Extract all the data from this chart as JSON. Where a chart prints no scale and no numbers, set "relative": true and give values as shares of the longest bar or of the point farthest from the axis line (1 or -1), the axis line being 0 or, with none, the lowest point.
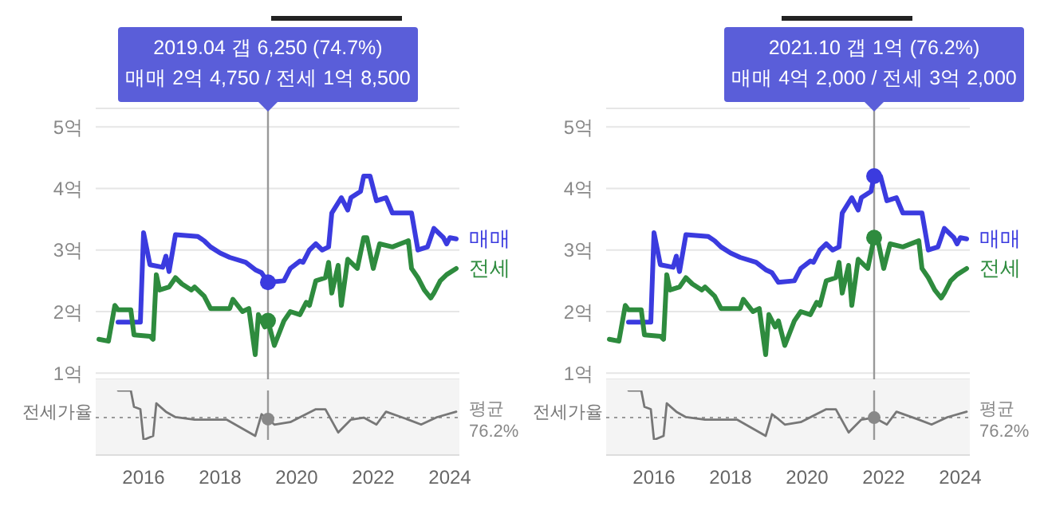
{
  "chart_data": [
    {
      "type": "line",
      "xlim": [
        "2014-10",
        "2024-04"
      ],
      "xticks": [
        "2016",
        "2018",
        "2020",
        "2022",
        "2024"
      ],
      "ylim": [
        0.9,
        5.3
      ],
      "yticks": [
        {
          "value": 1,
          "label": "1억"
        },
        {
          "value": 2,
          "label": "2억"
        },
        {
          "value": 3,
          "label": "3억"
        },
        {
          "value": 4,
          "label": "4억"
        },
        {
          "value": 5,
          "label": "5억"
        }
      ],
      "tick_labels": "y",
      "grid": "y",
      "legend": false,
      "series": [
        {
          "name": "매매",
          "color": "#3b3bdf",
          "x": [
            "2015-05",
            "2015-12",
            "2016-01",
            "2016-03",
            "2016-07",
            "2016-08",
            "2016-09",
            "2016-11",
            "2017-06",
            "2017-08",
            "2017-10",
            "2018-01",
            "2018-04",
            "2018-09",
            "2018-12",
            "2019-02",
            "2019-04",
            "2019-09",
            "2019-11",
            "2020-02",
            "2020-03",
            "2020-05",
            "2020-07",
            "2020-09",
            "2020-11",
            "2020-12",
            "2021-03",
            "2021-05",
            "2021-06",
            "2021-09",
            "2021-10",
            "2021-12",
            "2022-02",
            "2022-05",
            "2022-07",
            "2023-01",
            "2023-03",
            "2023-06",
            "2023-08",
            "2023-11",
            "2023-12",
            "2024-01",
            "2024-03"
          ],
          "values": [
            1.83,
            1.83,
            3.28,
            2.76,
            2.72,
            2.9,
            2.65,
            3.25,
            3.22,
            3.15,
            3.05,
            2.95,
            2.88,
            2.8,
            2.68,
            2.63,
            2.475,
            2.5,
            2.7,
            2.82,
            2.8,
            3.0,
            3.1,
            3.0,
            3.05,
            3.6,
            3.85,
            3.65,
            3.85,
            3.95,
            4.2,
            4.2,
            3.8,
            3.85,
            3.6,
            3.6,
            3.0,
            3.05,
            3.35,
            3.2,
            3.1,
            3.2,
            3.18
          ]
        },
        {
          "name": "전세",
          "color": "#2e8b3e",
          "x": [
            "2014-11",
            "2015-02",
            "2015-04",
            "2015-05",
            "2015-09",
            "2015-10",
            "2016-03",
            "2016-04",
            "2016-05",
            "2016-06",
            "2016-09",
            "2016-11",
            "2017-01",
            "2017-04",
            "2017-05",
            "2017-08",
            "2017-10",
            "2018-04",
            "2018-05",
            "2018-08",
            "2018-10",
            "2018-12",
            "2019-01",
            "2019-03",
            "2019-04",
            "2019-06",
            "2019-09",
            "2019-11",
            "2020-02",
            "2020-04",
            "2020-05",
            "2020-07",
            "2020-10",
            "2020-11",
            "2020-12",
            "2021-02",
            "2021-03",
            "2021-05",
            "2021-07",
            "2021-08",
            "2021-10",
            "2021-11",
            "2022-01",
            "2022-03",
            "2022-07",
            "2022-12",
            "2023-01",
            "2023-03",
            "2023-05",
            "2023-07",
            "2023-08",
            "2023-10",
            "2023-12",
            "2024-03"
          ],
          "values": [
            1.55,
            1.52,
            2.1,
            2.03,
            2.03,
            1.62,
            1.6,
            1.55,
            2.6,
            2.35,
            2.4,
            2.55,
            2.45,
            2.35,
            2.4,
            2.25,
            2.05,
            2.05,
            2.2,
            2.0,
            2.05,
            1.3,
            1.95,
            1.75,
            1.85,
            1.45,
            1.85,
            2.0,
            1.95,
            2.15,
            2.1,
            2.5,
            2.55,
            2.8,
            2.3,
            2.75,
            2.1,
            2.85,
            2.75,
            2.7,
            3.2,
            3.2,
            2.7,
            3.1,
            3.05,
            3.15,
            2.7,
            2.55,
            2.35,
            2.22,
            2.3,
            2.5,
            2.6,
            2.7
          ]
        }
      ],
      "ref_lines": [
        {
          "axis": "x",
          "value": "2019-04",
          "color": "#999999"
        }
      ],
      "annotations": [
        "2019.04  갭 6,250 (74.7%)",
        "매매 2억 4,750 / 전세 1억 8,500"
      ]
    },
    {
      "type": "line",
      "xlim": [
        "2014-10",
        "2024-04"
      ],
      "xticks": [
        "2016",
        "2018",
        "2020",
        "2022",
        "2024"
      ],
      "ylim": [
        0.9,
        5.3
      ],
      "yticks": [
        {
          "value": 1,
          "label": "1억"
        },
        {
          "value": 2,
          "label": "2억"
        },
        {
          "value": 3,
          "label": "3억"
        },
        {
          "value": 4,
          "label": "4억"
        },
        {
          "value": 5,
          "label": "5억"
        }
      ],
      "tick_labels": "y",
      "grid": "y",
      "legend": false,
      "series": [
        {
          "name": "매매",
          "color": "#3b3bdf",
          "x": [
            "2015-05",
            "2015-12",
            "2016-01",
            "2016-03",
            "2016-07",
            "2016-08",
            "2016-09",
            "2016-11",
            "2017-06",
            "2017-08",
            "2017-10",
            "2018-01",
            "2018-04",
            "2018-09",
            "2018-12",
            "2019-02",
            "2019-04",
            "2019-09",
            "2019-11",
            "2020-02",
            "2020-03",
            "2020-05",
            "2020-07",
            "2020-09",
            "2020-11",
            "2020-12",
            "2021-03",
            "2021-05",
            "2021-06",
            "2021-09",
            "2021-10",
            "2021-12",
            "2022-02",
            "2022-05",
            "2022-07",
            "2023-01",
            "2023-03",
            "2023-06",
            "2023-08",
            "2023-11",
            "2023-12",
            "2024-01",
            "2024-03"
          ],
          "values": [
            1.83,
            1.83,
            3.28,
            2.76,
            2.72,
            2.9,
            2.65,
            3.25,
            3.22,
            3.15,
            3.05,
            2.95,
            2.88,
            2.8,
            2.68,
            2.63,
            2.475,
            2.5,
            2.7,
            2.82,
            2.8,
            3.0,
            3.1,
            3.0,
            3.05,
            3.6,
            3.85,
            3.65,
            3.85,
            3.95,
            4.2,
            4.2,
            3.8,
            3.85,
            3.6,
            3.6,
            3.0,
            3.05,
            3.35,
            3.2,
            3.1,
            3.2,
            3.18
          ]
        },
        {
          "name": "전세",
          "color": "#2e8b3e",
          "x": [
            "2014-11",
            "2015-02",
            "2015-04",
            "2015-05",
            "2015-09",
            "2015-10",
            "2016-03",
            "2016-04",
            "2016-05",
            "2016-06",
            "2016-09",
            "2016-11",
            "2017-01",
            "2017-04",
            "2017-05",
            "2017-08",
            "2017-10",
            "2018-04",
            "2018-05",
            "2018-08",
            "2018-10",
            "2018-12",
            "2019-01",
            "2019-03",
            "2019-04",
            "2019-06",
            "2019-09",
            "2019-11",
            "2020-02",
            "2020-04",
            "2020-05",
            "2020-07",
            "2020-10",
            "2020-11",
            "2020-12",
            "2021-02",
            "2021-03",
            "2021-05",
            "2021-07",
            "2021-08",
            "2021-10",
            "2021-11",
            "2022-01",
            "2022-03",
            "2022-07",
            "2022-12",
            "2023-01",
            "2023-03",
            "2023-05",
            "2023-07",
            "2023-08",
            "2023-10",
            "2023-12",
            "2024-03"
          ],
          "values": [
            1.55,
            1.52,
            2.1,
            2.03,
            2.03,
            1.62,
            1.6,
            1.55,
            2.6,
            2.35,
            2.4,
            2.55,
            2.45,
            2.35,
            2.4,
            2.25,
            2.05,
            2.05,
            2.2,
            2.0,
            2.05,
            1.3,
            1.95,
            1.75,
            1.85,
            1.45,
            1.85,
            2.0,
            1.95,
            2.15,
            2.1,
            2.5,
            2.55,
            2.8,
            2.3,
            2.75,
            2.1,
            2.85,
            2.75,
            2.7,
            3.2,
            3.2,
            2.7,
            3.1,
            3.05,
            3.15,
            2.7,
            2.55,
            2.35,
            2.22,
            2.3,
            2.5,
            2.6,
            2.7
          ]
        }
      ],
      "ref_lines": [
        {
          "axis": "x",
          "value": "2021-10",
          "color": "#999999"
        }
      ],
      "annotations": [
        "2021.10  갭 1억 (76.2%)",
        "매매 4억 2,000 / 전세 3억 2,000"
      ]
    },
    {
      "type": "line",
      "relative": true,
      "xlim": [
        "2014-10",
        "2024-04"
      ],
      "xticks": [
        "2016",
        "2018",
        "2020",
        "2022",
        "2024"
      ],
      "tick_labels": "x",
      "legend": false,
      "series": [
        {
          "name": "전세가율",
          "color": "#777777",
          "x": [
            "2015-05",
            "2015-09",
            "2015-10",
            "2015-12",
            "2016-01",
            "2016-04",
            "2016-05",
            "2016-08",
            "2016-11",
            "2017-05",
            "2018-03",
            "2018-12",
            "2019-02",
            "2019-04",
            "2019-06",
            "2019-11",
            "2020-07",
            "2020-10",
            "2021-02",
            "2021-06",
            "2021-10",
            "2022-02",
            "2022-05",
            "2022-12",
            "2023-04",
            "2023-09",
            "2024-03"
          ],
          "values": [
            1,
            1,
            0.67,
            0.62,
            0,
            0.08,
            0.74,
            0.57,
            0.46,
            0.41,
            0.41,
            0.08,
            0.52,
            0.42,
            0.31,
            0.36,
            0.62,
            0.62,
            0.15,
            0.41,
            0.45,
            0.31,
            0.57,
            0.41,
            0.31,
            0.46,
            0.57
          ]
        }
      ],
      "ref_lines": [
        {
          "axis": "x",
          "value": "2019-04",
          "color": "#999999"
        },
        {
          "axis": "y",
          "value": 0.45,
          "label": "평균 76.2%",
          "color": "#999999",
          "line_style": "dotted"
        }
      ]
    },
    {
      "type": "line",
      "relative": true,
      "xlim": [
        "2014-10",
        "2024-04"
      ],
      "xticks": [
        "2016",
        "2018",
        "2020",
        "2022",
        "2024"
      ],
      "tick_labels": "x",
      "legend": false,
      "series": [
        {
          "name": "전세가율",
          "color": "#777777",
          "x": [
            "2015-05",
            "2015-09",
            "2015-10",
            "2015-12",
            "2016-01",
            "2016-04",
            "2016-05",
            "2016-08",
            "2016-11",
            "2017-05",
            "2018-03",
            "2018-12",
            "2019-02",
            "2019-04",
            "2019-06",
            "2019-11",
            "2020-07",
            "2020-10",
            "2021-02",
            "2021-06",
            "2021-10",
            "2022-02",
            "2022-05",
            "2022-12",
            "2023-04",
            "2023-09",
            "2024-03"
          ],
          "values": [
            1,
            1,
            0.67,
            0.62,
            0,
            0.08,
            0.74,
            0.57,
            0.46,
            0.41,
            0.41,
            0.08,
            0.52,
            0.42,
            0.31,
            0.36,
            0.62,
            0.62,
            0.15,
            0.41,
            0.45,
            0.31,
            0.57,
            0.41,
            0.31,
            0.46,
            0.57
          ]
        }
      ],
      "ref_lines": [
        {
          "axis": "x",
          "value": "2021-10",
          "color": "#999999"
        },
        {
          "axis": "y",
          "value": 0.45,
          "label": "평균 76.2%",
          "color": "#999999",
          "line_style": "dotted"
        }
      ]
    }
  ]
}
